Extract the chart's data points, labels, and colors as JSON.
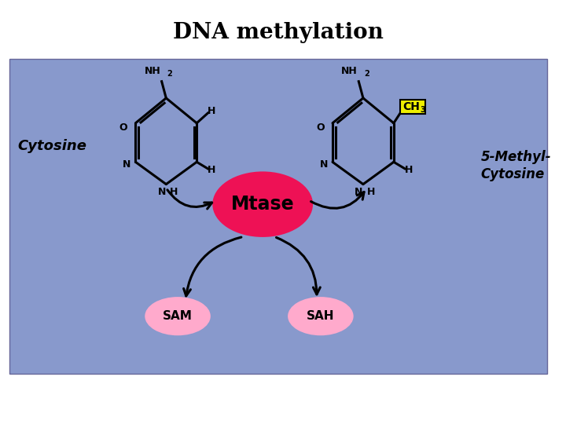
{
  "title": "DNA methylation",
  "title_fontsize": 20,
  "title_fontweight": "bold",
  "bg_color": "#8899cc",
  "white_color": "#ffffff",
  "cytosine_label": "Cytosine",
  "methyl_cytosine_label": "5-Methyl-\nCytosine",
  "mtase_label": "Mtase",
  "sam_label": "SAM",
  "sah_label": "SAH",
  "nh2_label": "NH2",
  "ch3_label": "CH3",
  "o_label": "O",
  "n_label": "N",
  "h_label": "H",
  "mtase_color": "#ee1155",
  "sam_color": "#ffaacc",
  "sah_color": "#ffaacc",
  "ch3_bg_color": "#eeee00",
  "lw": 2.2
}
